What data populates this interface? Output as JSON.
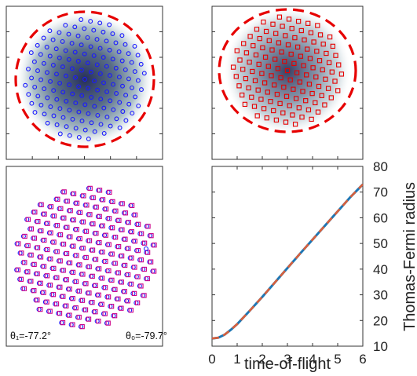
{
  "panels": {
    "top_left": {
      "marker": "circle",
      "marker_color": "#1a1aff",
      "boundary_color": "#e60000",
      "boundary_style": "dashed circle"
    },
    "top_right": {
      "marker": "square",
      "marker_color": "#e60000",
      "boundary_color": "#e60000",
      "boundary_style": "dashed circle"
    },
    "bottom_left": {
      "annotations": {
        "theta1": "θ₁=-77.2°",
        "theta0": "θ₀=-79.7°"
      },
      "markers": [
        "circle",
        "square"
      ],
      "marker_colors": [
        "#1a1aff",
        "#cc0088"
      ]
    }
  },
  "chart_data": {
    "type": "line",
    "xlabel": "time-of-flight",
    "ylabel": "Thomas-Fermi radius",
    "xlim": [
      0,
      6
    ],
    "ylim": [
      10,
      80
    ],
    "x_ticks": [
      "0",
      "1",
      "2",
      "3",
      "4",
      "5",
      "6"
    ],
    "y_ticks": [
      "10",
      "20",
      "30",
      "40",
      "50",
      "60",
      "70",
      "80"
    ],
    "y_axis_side": "right",
    "grid": false,
    "series": [
      {
        "color": "#1f77b4",
        "style": "solid",
        "x": [
          0,
          0.25,
          0.5,
          0.75,
          1,
          1.5,
          2,
          2.5,
          3,
          3.5,
          4,
          4.5,
          5,
          5.5,
          6
        ],
        "y": [
          13,
          13.3,
          14.5,
          16.4,
          18.6,
          23.8,
          29.2,
          34.8,
          40.4,
          46,
          51.5,
          57,
          62.5,
          68,
          73
        ]
      },
      {
        "color": "#d95f3b",
        "style": "dashed",
        "x": [
          0,
          0.25,
          0.5,
          0.75,
          1,
          1.5,
          2,
          2.5,
          3,
          3.5,
          4,
          4.5,
          5,
          5.5,
          6
        ],
        "y": [
          13,
          13.3,
          14.5,
          16.4,
          18.6,
          23.8,
          29.2,
          34.8,
          40.4,
          46,
          51.5,
          57,
          62.5,
          68,
          73
        ]
      }
    ]
  }
}
